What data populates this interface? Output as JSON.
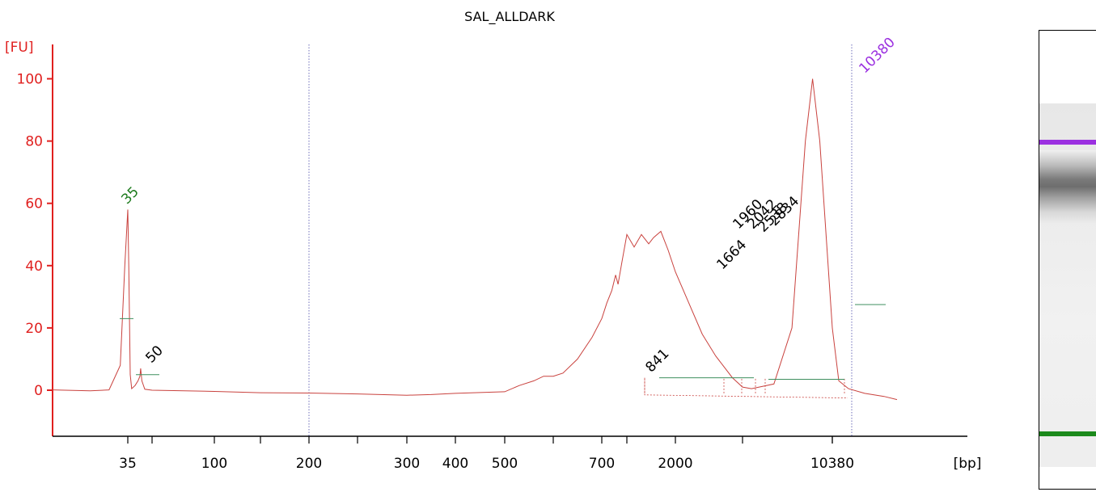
{
  "chart_data": {
    "type": "line",
    "title": "SAL_ALLDARK",
    "ylabel": "[FU]",
    "xlabel": "[bp]",
    "ylim": [
      -15,
      112
    ],
    "yticks": [
      0,
      20,
      40,
      60,
      80,
      100
    ],
    "xscale": "categorical-size-ladder",
    "xticks": [
      "35",
      "",
      "100",
      "",
      "200",
      "",
      "300",
      "400",
      "500",
      "",
      "700",
      "",
      "2000",
      "",
      "10380"
    ],
    "x_marker_lines": [
      "200",
      "10380"
    ],
    "grid": false,
    "peaks": [
      {
        "label": "35",
        "bp": "35",
        "height": 58,
        "color": "#1c7a1c"
      },
      {
        "label": "50",
        "bp": "50",
        "height": 7,
        "color": "#000000"
      },
      {
        "label": "841",
        "bp": "841",
        "height": 4,
        "color": "#000000"
      },
      {
        "label": "1664",
        "bp": "1664",
        "height": 37,
        "color": "#000000"
      },
      {
        "label": "1960",
        "bp": "1960",
        "height": 50,
        "color": "#000000"
      },
      {
        "label": "2042",
        "bp": "2042",
        "height": 50,
        "color": "#000000"
      },
      {
        "label": "2538",
        "bp": "2538",
        "height": 49,
        "color": "#000000"
      },
      {
        "label": "2834",
        "bp": "2834",
        "height": 51,
        "color": "#000000"
      },
      {
        "label": "10380",
        "bp": "10380",
        "height": 100,
        "color": "#9b30e0"
      }
    ],
    "trace": [
      {
        "pos": 0.0,
        "y": 0.1
      },
      {
        "pos": 0.5,
        "y": -0.2
      },
      {
        "pos": 0.75,
        "y": 0.1
      },
      {
        "pos": 0.9,
        "y": 8
      },
      {
        "pos": 0.96,
        "y": 40
      },
      {
        "pos": 1.0,
        "y": 58
      },
      {
        "pos": 1.04,
        "y": 40
      },
      {
        "pos": 1.1,
        "y": 5
      },
      {
        "pos": 1.16,
        "y": 0.5
      },
      {
        "pos": 1.3,
        "y": 1.5
      },
      {
        "pos": 1.42,
        "y": 3
      },
      {
        "pos": 1.5,
        "y": 4.5
      },
      {
        "pos": 1.53,
        "y": 7
      },
      {
        "pos": 1.58,
        "y": 3
      },
      {
        "pos": 1.7,
        "y": 0.3
      },
      {
        "pos": 2.0,
        "y": 0.0
      },
      {
        "pos": 3.0,
        "y": -0.4
      },
      {
        "pos": 4.0,
        "y": -0.8
      },
      {
        "pos": 5.0,
        "y": -0.9
      },
      {
        "pos": 6.0,
        "y": -1.2
      },
      {
        "pos": 7.0,
        "y": -1.6
      },
      {
        "pos": 7.5,
        "y": -1.4
      },
      {
        "pos": 8.0,
        "y": -1.0
      },
      {
        "pos": 9.0,
        "y": -0.5
      },
      {
        "pos": 9.3,
        "y": 1.5
      },
      {
        "pos": 9.6,
        "y": 3
      },
      {
        "pos": 9.8,
        "y": 4.5
      },
      {
        "pos": 10.0,
        "y": 4.5
      },
      {
        "pos": 10.2,
        "y": 5.5
      },
      {
        "pos": 10.5,
        "y": 10
      },
      {
        "pos": 10.8,
        "y": 17
      },
      {
        "pos": 11.0,
        "y": 23
      },
      {
        "pos": 11.2,
        "y": 28
      },
      {
        "pos": 11.4,
        "y": 32
      },
      {
        "pos": 11.55,
        "y": 37
      },
      {
        "pos": 11.65,
        "y": 34
      },
      {
        "pos": 11.8,
        "y": 41
      },
      {
        "pos": 12.0,
        "y": 50
      },
      {
        "pos": 12.15,
        "y": 46
      },
      {
        "pos": 12.3,
        "y": 50
      },
      {
        "pos": 12.45,
        "y": 47
      },
      {
        "pos": 12.55,
        "y": 49
      },
      {
        "pos": 12.7,
        "y": 51
      },
      {
        "pos": 12.85,
        "y": 45
      },
      {
        "pos": 13.0,
        "y": 38
      },
      {
        "pos": 13.2,
        "y": 28
      },
      {
        "pos": 13.4,
        "y": 18
      },
      {
        "pos": 13.6,
        "y": 11
      },
      {
        "pos": 13.85,
        "y": 4
      },
      {
        "pos": 14.0,
        "y": 1
      },
      {
        "pos": 14.1,
        "y": 0.5
      },
      {
        "pos": 14.35,
        "y": 2
      },
      {
        "pos": 14.55,
        "y": 20
      },
      {
        "pos": 14.7,
        "y": 80
      },
      {
        "pos": 14.78,
        "y": 100
      },
      {
        "pos": 14.86,
        "y": 80
      },
      {
        "pos": 15.0,
        "y": 20
      },
      {
        "pos": 15.2,
        "y": 3
      },
      {
        "pos": 15.5,
        "y": 0.5
      },
      {
        "pos": 16.0,
        "y": -1
      },
      {
        "pos": 16.6,
        "y": -2
      },
      {
        "pos": 17.0,
        "y": -3
      }
    ],
    "gel_bands": [
      {
        "name": "upper-marker",
        "color": "#9b30e0"
      },
      {
        "name": "sample-smear",
        "color": "#777777"
      },
      {
        "name": "lower-marker",
        "color": "#1c8a1c"
      }
    ],
    "colors": {
      "axis": "#e0201f",
      "trace": "#c9423e",
      "marker_line": "#4a4aa8",
      "baseline": "#3f8f5f"
    }
  }
}
